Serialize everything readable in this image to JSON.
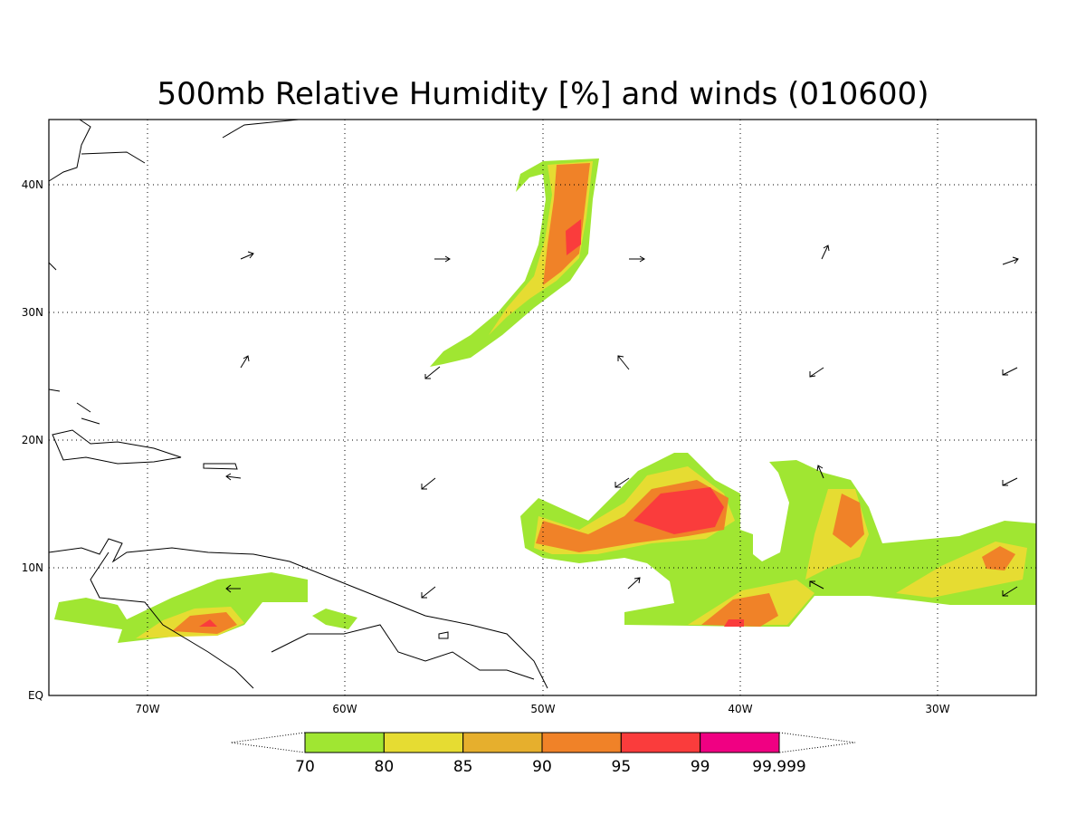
{
  "title": "500mb Relative Humidity [%] and winds (010600)",
  "lon_labels": [
    "70W",
    "60W",
    "50W",
    "40W",
    "30W"
  ],
  "lat_labels": [
    "EQ",
    "10N",
    "20N",
    "30N",
    "40N"
  ],
  "legend": {
    "labels": [
      "70",
      "80",
      "85",
      "90",
      "95",
      "99",
      "99.999"
    ],
    "colors": [
      "#a0e632",
      "#e6dc32",
      "#e6af2d",
      "#f08228",
      "#fa3c3c",
      "#f00082"
    ]
  }
}
